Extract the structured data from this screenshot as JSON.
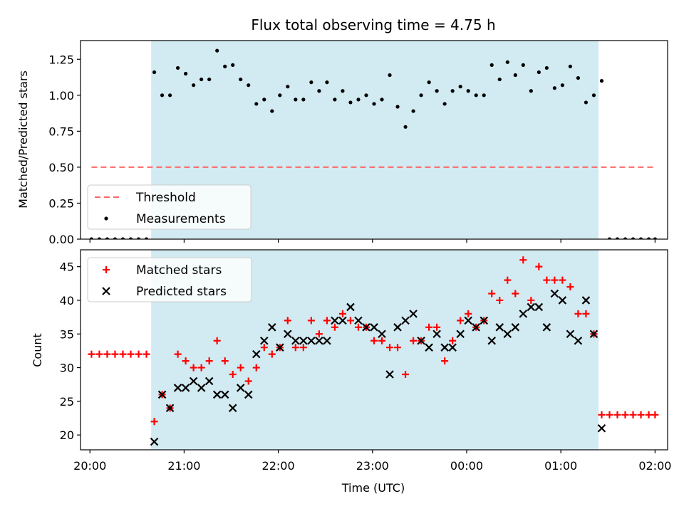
{
  "chart_data": [
    {
      "type": "scatter",
      "title": "Flux total observing time = 4.75 h",
      "xlabel": "",
      "ylabel": "Matched/Predicted stars",
      "xlim": [
        "19:54",
        "02:08"
      ],
      "ylim": [
        0,
        1.38
      ],
      "yticks": [
        "0.00",
        "0.25",
        "0.50",
        "0.75",
        "1.00",
        "1.25"
      ],
      "shaded_region": {
        "start": "20:39",
        "end": "01:24",
        "color": "#add8e6"
      },
      "legend": {
        "position": "lower-left",
        "entries": [
          "Threshold",
          "Measurements"
        ]
      },
      "series": [
        {
          "name": "Threshold",
          "style": "dashed-line",
          "color": "#ff6666",
          "x": [
            "20:01",
            "02:00"
          ],
          "y": [
            0.5,
            0.5
          ]
        },
        {
          "name": "Measurements",
          "style": "dots",
          "color": "#000000",
          "x": [
            "20:01",
            "20:06",
            "20:11",
            "20:16",
            "20:21",
            "20:26",
            "20:31",
            "20:36",
            "20:41",
            "20:46",
            "20:51",
            "20:56",
            "21:01",
            "21:06",
            "21:11",
            "21:16",
            "21:21",
            "21:26",
            "21:31",
            "21:36",
            "21:41",
            "21:46",
            "21:51",
            "21:56",
            "22:01",
            "22:06",
            "22:11",
            "22:16",
            "22:21",
            "22:26",
            "22:31",
            "22:36",
            "22:41",
            "22:46",
            "22:51",
            "22:56",
            "23:01",
            "23:06",
            "23:11",
            "23:16",
            "23:21",
            "23:26",
            "23:31",
            "23:36",
            "23:41",
            "23:46",
            "23:51",
            "23:56",
            "00:01",
            "00:06",
            "00:11",
            "00:16",
            "00:21",
            "00:26",
            "00:31",
            "00:36",
            "00:41",
            "00:46",
            "00:51",
            "00:56",
            "01:01",
            "01:06",
            "01:11",
            "01:16",
            "01:21",
            "01:26",
            "01:31",
            "01:36",
            "01:41",
            "01:46",
            "01:51",
            "01:56",
            "02:00"
          ],
          "y": [
            0,
            0,
            0,
            0,
            0,
            0,
            0,
            0,
            1.16,
            1.0,
            1.0,
            1.19,
            1.15,
            1.07,
            1.11,
            1.11,
            1.31,
            1.2,
            1.21,
            1.11,
            1.07,
            0.94,
            0.97,
            0.89,
            1.0,
            1.06,
            0.97,
            0.97,
            1.09,
            1.03,
            1.09,
            0.97,
            1.03,
            0.95,
            0.97,
            1.0,
            0.94,
            0.97,
            1.14,
            0.92,
            0.78,
            0.89,
            1.0,
            1.09,
            1.03,
            0.94,
            1.03,
            1.06,
            1.03,
            1.0,
            1.0,
            1.21,
            1.11,
            1.23,
            1.14,
            1.21,
            1.03,
            1.16,
            1.19,
            1.05,
            1.07,
            1.2,
            1.12,
            0.95,
            1.0,
            1.1,
            0,
            0,
            0,
            0,
            0,
            0,
            0
          ]
        }
      ]
    },
    {
      "type": "scatter",
      "title": "",
      "xlabel": "Time (UTC)",
      "ylabel": "Count",
      "xlim": [
        "19:54",
        "02:08"
      ],
      "ylim": [
        17.8,
        47.5
      ],
      "xticks": [
        "20:00",
        "21:00",
        "22:00",
        "23:00",
        "00:00",
        "01:00",
        "02:00"
      ],
      "yticks": [
        "20",
        "25",
        "30",
        "35",
        "40",
        "45"
      ],
      "shaded_region": {
        "start": "20:39",
        "end": "01:24",
        "color": "#add8e6"
      },
      "legend": {
        "position": "upper-left",
        "entries": [
          "Matched stars",
          "Predicted stars"
        ]
      },
      "series": [
        {
          "name": "Matched stars",
          "marker": "plus",
          "color": "#ff0000",
          "x": [
            "20:01",
            "20:06",
            "20:11",
            "20:16",
            "20:21",
            "20:26",
            "20:31",
            "20:36",
            "20:41",
            "20:46",
            "20:51",
            "20:56",
            "21:01",
            "21:06",
            "21:11",
            "21:16",
            "21:21",
            "21:26",
            "21:31",
            "21:36",
            "21:41",
            "21:46",
            "21:51",
            "21:56",
            "22:01",
            "22:06",
            "22:11",
            "22:16",
            "22:21",
            "22:26",
            "22:31",
            "22:36",
            "22:41",
            "22:46",
            "22:51",
            "22:56",
            "23:01",
            "23:06",
            "23:11",
            "23:16",
            "23:21",
            "23:26",
            "23:31",
            "23:36",
            "23:41",
            "23:46",
            "23:51",
            "23:56",
            "00:01",
            "00:06",
            "00:11",
            "00:16",
            "00:21",
            "00:26",
            "00:31",
            "00:36",
            "00:41",
            "00:46",
            "00:51",
            "00:56",
            "01:01",
            "01:06",
            "01:11",
            "01:16",
            "01:21",
            "01:26",
            "01:31",
            "01:36",
            "01:41",
            "01:46",
            "01:51",
            "01:56",
            "02:00"
          ],
          "y": [
            32,
            32,
            32,
            32,
            32,
            32,
            32,
            32,
            22,
            26,
            24,
            32,
            31,
            30,
            30,
            31,
            34,
            31,
            29,
            30,
            28,
            30,
            33,
            32,
            33,
            37,
            33,
            33,
            37,
            35,
            37,
            36,
            38,
            37,
            36,
            36,
            34,
            34,
            33,
            33,
            29,
            34,
            34,
            36,
            36,
            31,
            34,
            37,
            38,
            36,
            37,
            41,
            40,
            43,
            41,
            46,
            40,
            45,
            43,
            43,
            43,
            42,
            38,
            38,
            35,
            23,
            23,
            23,
            23,
            23,
            23,
            23,
            23
          ]
        },
        {
          "name": "Predicted stars",
          "marker": "x",
          "color": "#000000",
          "x": [
            "20:41",
            "20:46",
            "20:51",
            "20:56",
            "21:01",
            "21:06",
            "21:11",
            "21:16",
            "21:21",
            "21:26",
            "21:31",
            "21:36",
            "21:41",
            "21:46",
            "21:51",
            "21:56",
            "22:01",
            "22:06",
            "22:11",
            "22:16",
            "22:21",
            "22:26",
            "22:31",
            "22:36",
            "22:41",
            "22:46",
            "22:51",
            "22:56",
            "23:01",
            "23:06",
            "23:11",
            "23:16",
            "23:21",
            "23:26",
            "23:31",
            "23:36",
            "23:41",
            "23:46",
            "23:51",
            "23:56",
            "00:01",
            "00:06",
            "00:11",
            "00:16",
            "00:21",
            "00:26",
            "00:31",
            "00:36",
            "00:41",
            "00:46",
            "00:51",
            "00:56",
            "01:01",
            "01:06",
            "01:11",
            "01:16",
            "01:21",
            "01:26"
          ],
          "y": [
            19,
            26,
            24,
            27,
            27,
            28,
            27,
            28,
            26,
            26,
            24,
            27,
            26,
            32,
            34,
            36,
            33,
            35,
            34,
            34,
            34,
            34,
            34,
            37,
            37,
            39,
            37,
            36,
            36,
            35,
            29,
            36,
            37,
            38,
            34,
            33,
            35,
            33,
            33,
            35,
            37,
            36,
            37,
            34,
            36,
            35,
            36,
            38,
            39,
            39,
            36,
            41,
            40,
            35,
            34,
            40,
            35,
            21
          ]
        }
      ]
    }
  ]
}
